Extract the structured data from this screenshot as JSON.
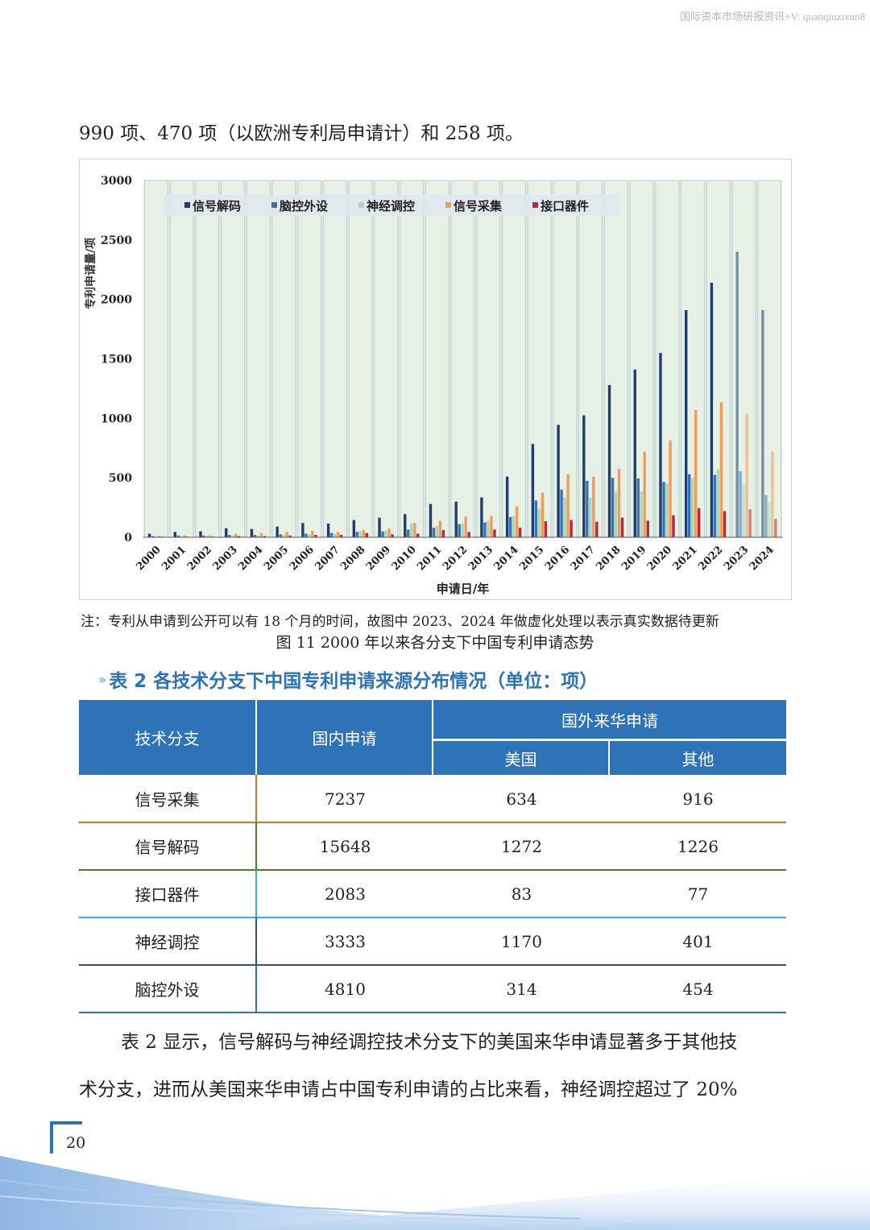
{
  "watermark": "国际资本市场研报资讯+V: quanqiuzixun8",
  "intro_line": "990 项、470 项（以欧洲专利局申请计）和 258 项。",
  "chart_data": {
    "type": "bar",
    "title": "",
    "xlabel": "申请日/年",
    "ylabel": "专利申请量/项",
    "ylim": [
      0,
      3000
    ],
    "yticks": [
      "0",
      "500",
      "1000",
      "1500",
      "2000",
      "2500",
      "3000"
    ],
    "categories": [
      "2000",
      "2001",
      "2002",
      "2003",
      "2004",
      "2005",
      "2006",
      "2007",
      "2008",
      "2009",
      "2010",
      "2011",
      "2012",
      "2013",
      "2014",
      "2015",
      "2016",
      "2017",
      "2018",
      "2019",
      "2020",
      "2021",
      "2022",
      "2023",
      "2024"
    ],
    "series": [
      {
        "name": "信号解码",
        "color": "#1f3e6e",
        "values": [
          30,
          45,
          50,
          75,
          70,
          90,
          120,
          115,
          145,
          165,
          195,
          280,
          300,
          335,
          510,
          785,
          945,
          1025,
          1280,
          1410,
          1550,
          1910,
          2140,
          2400,
          1910
        ]
      },
      {
        "name": "脑控外设",
        "color": "#3c72b3",
        "values": [
          10,
          15,
          15,
          20,
          20,
          25,
          30,
          35,
          45,
          50,
          65,
          80,
          110,
          125,
          170,
          310,
          400,
          475,
          500,
          495,
          465,
          530,
          525,
          555,
          355
        ]
      },
      {
        "name": "神经调控",
        "color": "#a8d8b9",
        "values": [
          5,
          10,
          10,
          15,
          15,
          20,
          25,
          30,
          50,
          55,
          120,
          95,
          115,
          140,
          180,
          240,
          335,
          330,
          380,
          385,
          455,
          500,
          570,
          440,
          290
        ]
      },
      {
        "name": "信号采集",
        "color": "#f39b5b",
        "values": [
          10,
          15,
          15,
          30,
          35,
          45,
          55,
          45,
          60,
          75,
          120,
          140,
          175,
          180,
          260,
          375,
          530,
          510,
          575,
          720,
          815,
          1070,
          1135,
          1040,
          720
        ]
      },
      {
        "name": "接口器件",
        "color": "#b5283a",
        "values": [
          5,
          5,
          5,
          10,
          10,
          15,
          20,
          20,
          35,
          25,
          30,
          60,
          45,
          65,
          80,
          135,
          145,
          130,
          165,
          140,
          185,
          245,
          220,
          235,
          155
        ]
      }
    ],
    "grid": false,
    "legend": "top-left"
  },
  "note": "注：专利从申请到公开可以有 18 个月的时间，故图中 2023、2024 年做虚化处理以表示真实数据待更新",
  "figure_caption": "图 11 2000 年以来各分支下中国专利申请态势",
  "table": {
    "title": "表 2 各技术分支下中国专利申请来源分布情况（单位：项）",
    "headers": {
      "branch": "技术分支",
      "domestic": "国内申请",
      "foreign": "国外来华申请",
      "us": "美国",
      "other": "其他"
    },
    "rows": [
      {
        "branch": "信号采集",
        "domestic": "7237",
        "us": "634",
        "other": "916",
        "color": "#d4742a"
      },
      {
        "branch": "信号解码",
        "domestic": "15648",
        "us": "1272",
        "other": "1226",
        "color": "#4f7f2e"
      },
      {
        "branch": "接口器件",
        "domestic": "2083",
        "us": "83",
        "other": "77",
        "color": "#2fb3e0"
      },
      {
        "branch": "神经调控",
        "domestic": "3333",
        "us": "1170",
        "other": "401",
        "color": "#2e4f8f"
      },
      {
        "branch": "脑控外设",
        "domestic": "4810",
        "us": "314",
        "other": "454",
        "color": "#2e73b8"
      }
    ]
  },
  "body_text_1": "表 2 显示，信号解码与神经调控技术分支下的美国来华申请显著多于其他技",
  "body_text_2": "术分支，进而从美国来华申请占中国专利申请的占比来看，神经调控超过了 20%",
  "page_number": "20"
}
